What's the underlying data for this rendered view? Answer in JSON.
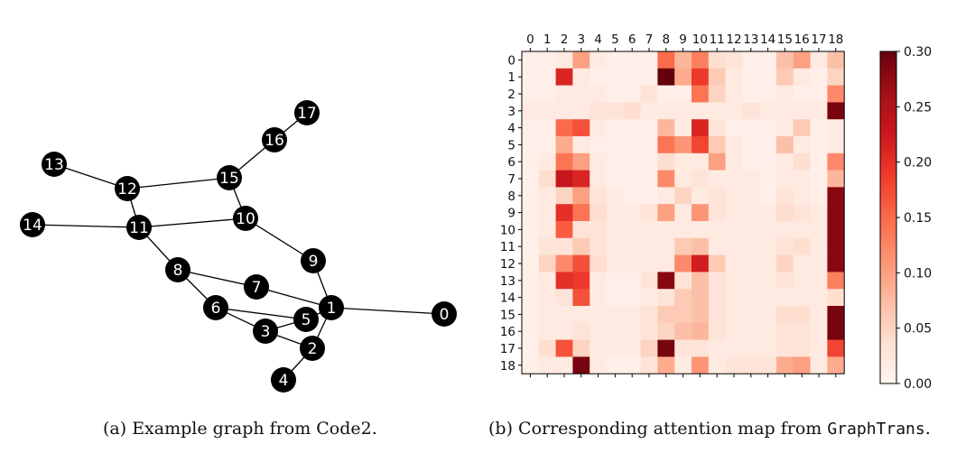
{
  "graph": {
    "nodes": [
      {
        "id": "0"
      },
      {
        "id": "1"
      },
      {
        "id": "2"
      },
      {
        "id": "3"
      },
      {
        "id": "4"
      },
      {
        "id": "5"
      },
      {
        "id": "6"
      },
      {
        "id": "7"
      },
      {
        "id": "8"
      },
      {
        "id": "9"
      },
      {
        "id": "10"
      },
      {
        "id": "11"
      },
      {
        "id": "12"
      },
      {
        "id": "13"
      },
      {
        "id": "14"
      },
      {
        "id": "15"
      },
      {
        "id": "16"
      },
      {
        "id": "17"
      }
    ],
    "edges": [
      [
        "13",
        "12"
      ],
      [
        "12",
        "15"
      ],
      [
        "12",
        "11"
      ],
      [
        "14",
        "11"
      ],
      [
        "11",
        "10"
      ],
      [
        "15",
        "10"
      ],
      [
        "15",
        "16"
      ],
      [
        "16",
        "17"
      ],
      [
        "11",
        "8"
      ],
      [
        "10",
        "9"
      ],
      [
        "9",
        "1"
      ],
      [
        "8",
        "7"
      ],
      [
        "8",
        "6"
      ],
      [
        "7",
        "1"
      ],
      [
        "1",
        "0"
      ],
      [
        "1",
        "5"
      ],
      [
        "1",
        "2"
      ],
      [
        "6",
        "5"
      ],
      [
        "6",
        "3"
      ],
      [
        "3",
        "5"
      ],
      [
        "3",
        "2"
      ],
      [
        "2",
        "4"
      ]
    ]
  },
  "chart_data": {
    "type": "heatmap",
    "x_labels": [
      "0",
      "1",
      "2",
      "3",
      "4",
      "5",
      "6",
      "7",
      "8",
      "9",
      "10",
      "11",
      "12",
      "13",
      "14",
      "15",
      "16",
      "17",
      "18"
    ],
    "y_labels": [
      "0",
      "1",
      "2",
      "3",
      "4",
      "5",
      "6",
      "7",
      "8",
      "9",
      "10",
      "11",
      "12",
      "13",
      "14",
      "15",
      "16",
      "17",
      "18"
    ],
    "values": [
      [
        0.01,
        0.01,
        0.02,
        0.1,
        0.02,
        0.01,
        0.01,
        0.01,
        0.15,
        0.08,
        0.13,
        0.04,
        0.03,
        0.01,
        0.01,
        0.07,
        0.1,
        0.02,
        0.07
      ],
      [
        0.01,
        0.01,
        0.21,
        0.02,
        0.01,
        0.01,
        0.01,
        0.01,
        0.3,
        0.09,
        0.19,
        0.06,
        0.02,
        0.01,
        0.01,
        0.06,
        0.02,
        0.01,
        0.05
      ],
      [
        0.01,
        0.01,
        0.02,
        0.02,
        0.02,
        0.01,
        0.01,
        0.03,
        0.01,
        0.01,
        0.14,
        0.05,
        0.02,
        0.01,
        0.01,
        0.02,
        0.01,
        0.01,
        0.12
      ],
      [
        0.02,
        0.02,
        0.02,
        0.02,
        0.03,
        0.03,
        0.04,
        0.02,
        0.02,
        0.02,
        0.02,
        0.02,
        0.02,
        0.03,
        0.02,
        0.02,
        0.02,
        0.02,
        0.29
      ],
      [
        0.01,
        0.01,
        0.15,
        0.17,
        0.02,
        0.01,
        0.01,
        0.01,
        0.08,
        0.02,
        0.21,
        0.03,
        0.01,
        0.01,
        0.01,
        0.02,
        0.06,
        0.01,
        0.02
      ],
      [
        0.01,
        0.01,
        0.09,
        0.02,
        0.01,
        0.01,
        0.01,
        0.01,
        0.14,
        0.11,
        0.18,
        0.06,
        0.02,
        0.01,
        0.01,
        0.07,
        0.02,
        0.01,
        0.02
      ],
      [
        0.01,
        0.02,
        0.14,
        0.1,
        0.02,
        0.01,
        0.01,
        0.01,
        0.04,
        0.02,
        0.02,
        0.1,
        0.02,
        0.01,
        0.01,
        0.02,
        0.04,
        0.01,
        0.12
      ],
      [
        0.01,
        0.04,
        0.23,
        0.21,
        0.02,
        0.01,
        0.01,
        0.01,
        0.12,
        0.02,
        0.03,
        0.02,
        0.02,
        0.02,
        0.01,
        0.02,
        0.02,
        0.01,
        0.08
      ],
      [
        0.01,
        0.02,
        0.05,
        0.1,
        0.03,
        0.02,
        0.01,
        0.01,
        0.02,
        0.05,
        0.02,
        0.03,
        0.02,
        0.02,
        0.01,
        0.03,
        0.02,
        0.01,
        0.28
      ],
      [
        0.01,
        0.02,
        0.2,
        0.14,
        0.04,
        0.02,
        0.02,
        0.03,
        0.1,
        0.02,
        0.11,
        0.03,
        0.02,
        0.02,
        0.02,
        0.04,
        0.03,
        0.02,
        0.28
      ],
      [
        0.01,
        0.02,
        0.16,
        0.03,
        0.03,
        0.02,
        0.02,
        0.02,
        0.02,
        0.02,
        0.02,
        0.02,
        0.02,
        0.02,
        0.02,
        0.02,
        0.02,
        0.02,
        0.28
      ],
      [
        0.01,
        0.03,
        0.03,
        0.06,
        0.03,
        0.02,
        0.02,
        0.02,
        0.02,
        0.06,
        0.07,
        0.02,
        0.02,
        0.02,
        0.02,
        0.03,
        0.04,
        0.02,
        0.28
      ],
      [
        0.01,
        0.05,
        0.12,
        0.17,
        0.04,
        0.02,
        0.02,
        0.02,
        0.02,
        0.12,
        0.22,
        0.06,
        0.02,
        0.02,
        0.02,
        0.05,
        0.02,
        0.02,
        0.28
      ],
      [
        0.01,
        0.02,
        0.2,
        0.19,
        0.02,
        0.01,
        0.01,
        0.03,
        0.28,
        0.03,
        0.07,
        0.03,
        0.02,
        0.02,
        0.02,
        0.03,
        0.02,
        0.02,
        0.13
      ],
      [
        0.01,
        0.02,
        0.03,
        0.17,
        0.02,
        0.01,
        0.01,
        0.02,
        0.03,
        0.06,
        0.07,
        0.03,
        0.02,
        0.02,
        0.02,
        0.02,
        0.02,
        0.02,
        0.04
      ],
      [
        0.01,
        0.02,
        0.02,
        0.02,
        0.02,
        0.02,
        0.02,
        0.03,
        0.06,
        0.06,
        0.07,
        0.03,
        0.02,
        0.02,
        0.02,
        0.04,
        0.04,
        0.02,
        0.29
      ],
      [
        0.01,
        0.02,
        0.02,
        0.03,
        0.02,
        0.02,
        0.02,
        0.03,
        0.05,
        0.07,
        0.08,
        0.03,
        0.02,
        0.02,
        0.02,
        0.03,
        0.03,
        0.02,
        0.29
      ],
      [
        0.01,
        0.04,
        0.17,
        0.05,
        0.02,
        0.02,
        0.02,
        0.05,
        0.29,
        0.03,
        0.03,
        0.02,
        0.02,
        0.02,
        0.02,
        0.03,
        0.03,
        0.02,
        0.18
      ],
      [
        0.01,
        0.02,
        0.02,
        0.29,
        0.02,
        0.01,
        0.01,
        0.03,
        0.09,
        0.02,
        0.11,
        0.02,
        0.03,
        0.03,
        0.03,
        0.09,
        0.1,
        0.02,
        0.09
      ]
    ],
    "zlim": [
      0.0,
      0.3
    ],
    "colormap": "Reds",
    "colorbar_ticks": [
      "0.00",
      "0.05",
      "0.10",
      "0.15",
      "0.20",
      "0.25",
      "0.30"
    ],
    "colorbar_tick_values": [
      0.0,
      0.05,
      0.1,
      0.15,
      0.2,
      0.25,
      0.3
    ]
  },
  "captions": {
    "a": "(a) Example graph from Code2.",
    "b_prefix": "(b) Corresponding attention map from ",
    "b_code": "GraphTrans",
    "b_suffix": "."
  }
}
